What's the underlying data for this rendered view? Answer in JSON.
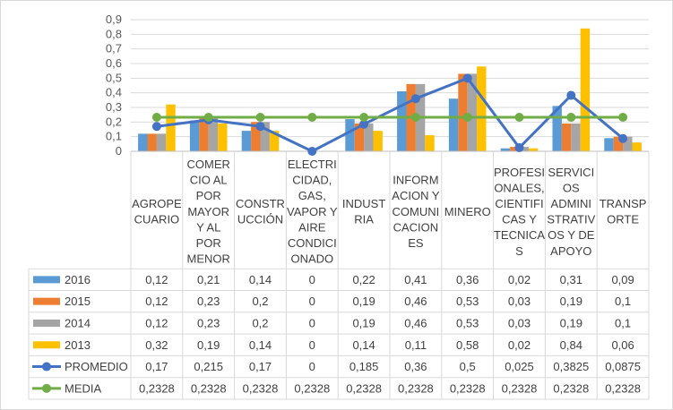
{
  "chart_data": {
    "type": "bar",
    "title": "",
    "xlabel": "",
    "ylabel": "",
    "ylim": [
      0,
      0.9
    ],
    "yticks": [
      "0",
      "0,1",
      "0,2",
      "0,3",
      "0,4",
      "0,5",
      "0,6",
      "0,7",
      "0,8",
      "0,9"
    ],
    "grid": true,
    "legend": "data-table",
    "categories": [
      [
        "AGROPE",
        "CUARIO"
      ],
      [
        "COMER",
        "CIO AL",
        "POR",
        "MAYOR",
        "Y AL",
        "POR",
        "MENOR"
      ],
      [
        "CONSTR",
        "UCCIÓN"
      ],
      [
        "ELECTRI",
        "CIDAD,",
        "GAS,",
        "VAPOR Y",
        "AIRE",
        "CONDICI",
        "ONADO"
      ],
      [
        "INDUST",
        "RIA"
      ],
      [
        "INFORM",
        "ACION Y",
        "COMUNI",
        "CACION",
        "ES"
      ],
      [
        "MINERO"
      ],
      [
        "PROFESI",
        "ONALES,",
        "CIENTIFI",
        "CAS Y",
        "TECNICA",
        "S"
      ],
      [
        "SERVICI",
        "OS",
        "ADMINI",
        "STRATIV",
        "OS Y DE",
        "APOYO"
      ],
      [
        "TRANSP",
        "ORTE"
      ]
    ],
    "series": [
      {
        "name": "2016",
        "kind": "bar",
        "color": "#5b9bd5",
        "values": [
          0.12,
          0.21,
          0.14,
          0,
          0.22,
          0.41,
          0.36,
          0.02,
          0.31,
          0.09
        ],
        "labels": [
          "0,12",
          "0,21",
          "0,14",
          "0",
          "0,22",
          "0,41",
          "0,36",
          "0,02",
          "0,31",
          "0,09"
        ]
      },
      {
        "name": "2015",
        "kind": "bar",
        "color": "#ed7d31",
        "values": [
          0.12,
          0.23,
          0.2,
          0,
          0.19,
          0.46,
          0.53,
          0.03,
          0.19,
          0.1
        ],
        "labels": [
          "0,12",
          "0,23",
          "0,2",
          "0",
          "0,19",
          "0,46",
          "0,53",
          "0,03",
          "0,19",
          "0,1"
        ]
      },
      {
        "name": "2014",
        "kind": "bar",
        "color": "#a5a5a5",
        "values": [
          0.12,
          0.23,
          0.2,
          0,
          0.19,
          0.46,
          0.53,
          0.03,
          0.19,
          0.1
        ],
        "labels": [
          "0,12",
          "0,23",
          "0,2",
          "0",
          "0,19",
          "0,46",
          "0,53",
          "0,03",
          "0,19",
          "0,1"
        ]
      },
      {
        "name": "2013",
        "kind": "bar",
        "color": "#ffc000",
        "values": [
          0.32,
          0.19,
          0.14,
          0,
          0.14,
          0.11,
          0.58,
          0.02,
          0.84,
          0.06
        ],
        "labels": [
          "0,32",
          "0,19",
          "0,14",
          "0",
          "0,14",
          "0,11",
          "0,58",
          "0,02",
          "0,84",
          "0,06"
        ]
      },
      {
        "name": "PROMEDIO",
        "kind": "line",
        "color": "#4472c4",
        "values": [
          0.17,
          0.215,
          0.17,
          0,
          0.185,
          0.36,
          0.5,
          0.025,
          0.3825,
          0.0875
        ],
        "labels": [
          "0,17",
          "0,215",
          "0,17",
          "0",
          "0,185",
          "0,36",
          "0,5",
          "0,025",
          "0,3825",
          "0,0875"
        ]
      },
      {
        "name": "MEDIA",
        "kind": "line",
        "color": "#70ad47",
        "values": [
          0.2328,
          0.2328,
          0.2328,
          0.2328,
          0.2328,
          0.2328,
          0.2328,
          0.2328,
          0.2328,
          0.2328
        ],
        "labels": [
          "0,2328",
          "0,2328",
          "0,2328",
          "0,2328",
          "0,2328",
          "0,2328",
          "0,2328",
          "0,2328",
          "0,2328",
          "0,2328"
        ]
      }
    ]
  }
}
